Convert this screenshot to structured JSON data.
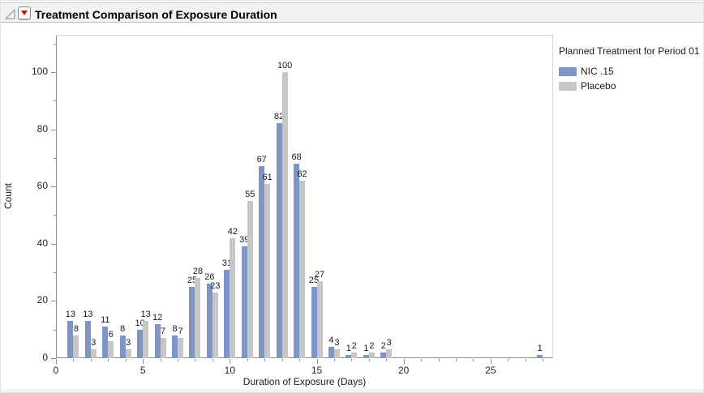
{
  "header": {
    "title": "Treatment Comparison of Exposure Duration"
  },
  "icons": {
    "disclosure": "outline-collapse-triangle",
    "menu": "red-triangle-menu"
  },
  "colors": {
    "series_blue": "#7e95c8",
    "series_gray": "#c6c6c6",
    "header_bg": "#f2f2f2",
    "axis": "#8f8f8f"
  },
  "chart_data": {
    "type": "bar",
    "title": "Treatment Comparison of Exposure Duration",
    "xlabel": "Duration of Exposure (Days)",
    "ylabel": "Count",
    "legend_title": "Planned Treatment for Period 01",
    "legend_position": "right",
    "grid": false,
    "bar_labels": true,
    "x": [
      1,
      2,
      3,
      4,
      5,
      6,
      7,
      8,
      9,
      10,
      11,
      12,
      13,
      14,
      15,
      16,
      17,
      18,
      19,
      28
    ],
    "series": [
      {
        "name": "NIC .15",
        "color": "#7e95c8",
        "values": [
          13,
          13,
          11,
          8,
          10,
          12,
          8,
          25,
          26,
          31,
          39,
          67,
          82,
          68,
          25,
          4,
          1,
          1,
          2,
          1
        ]
      },
      {
        "name": "Placebo",
        "color": "#c6c6c6",
        "values": [
          8,
          3,
          6,
          3,
          13,
          7,
          7,
          28,
          23,
          42,
          55,
          61,
          100,
          62,
          27,
          3,
          2,
          2,
          3,
          null
        ]
      }
    ],
    "xlim": [
      0,
      28.6
    ],
    "ylim": [
      0,
      113
    ],
    "x_major_ticks": [
      0,
      5,
      10,
      15,
      20,
      25
    ],
    "x_minor_step": 1,
    "x_minor_max": 28,
    "y_major_ticks": [
      0,
      20,
      40,
      60,
      80,
      100
    ],
    "y_minor_step": 10,
    "y_minor_max": 110
  }
}
